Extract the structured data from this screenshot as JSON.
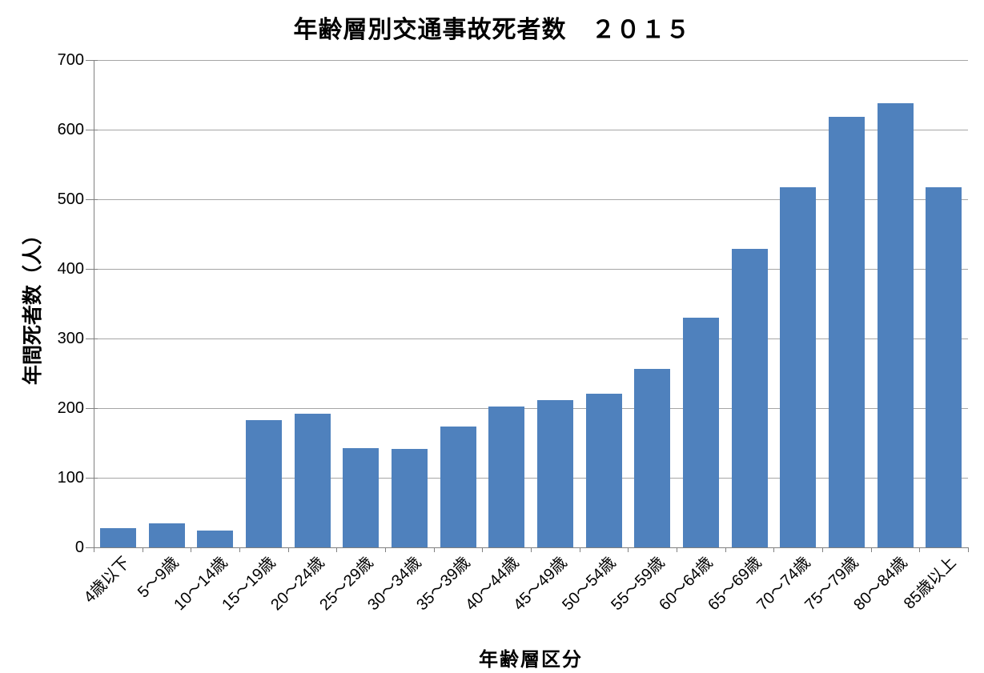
{
  "chart_data": {
    "type": "bar",
    "title": "年齢層別交通事故死者数　２０１５",
    "xlabel": "年齢層区分",
    "ylabel": "年間死者数（人）",
    "categories": [
      "4歳以下",
      "5～9歳",
      "10～14歳",
      "15～19歳",
      "20～24歳",
      "25～29歳",
      "30～34歳",
      "35～39歳",
      "40～44歳",
      "45～49歳",
      "50～54歳",
      "55～59歳",
      "60～64歳",
      "65～69歳",
      "70～74歳",
      "75～79歳",
      "80～84歳",
      "85歳以上"
    ],
    "values": [
      28,
      34,
      24,
      183,
      192,
      143,
      141,
      174,
      202,
      211,
      221,
      256,
      330,
      429,
      517,
      618,
      638,
      517
    ],
    "ylim": [
      0,
      700
    ],
    "yticks": [
      0,
      100,
      200,
      300,
      400,
      500,
      600,
      700
    ],
    "grid": "horizontal-only",
    "legend_position": "none",
    "bar_color": "#4F81BD",
    "gridline_color": "#A6A6A6",
    "axis_color": "#808080",
    "text_color": "#000000"
  }
}
